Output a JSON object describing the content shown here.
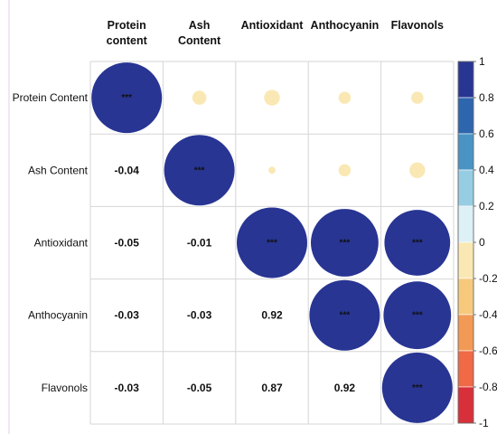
{
  "chart_data": {
    "type": "heatmap",
    "variables": [
      "Protein Content",
      "Ash Content",
      "Antioxidant",
      "Anthocyanin",
      "Flavonols"
    ],
    "column_labels": [
      [
        "Protein",
        "content"
      ],
      [
        "Ash",
        "Content"
      ],
      [
        "Antioxidant"
      ],
      [
        "Anthocyanin"
      ],
      [
        "Flavonols"
      ]
    ],
    "row_labels": [
      "Protein Content",
      "Ash Content",
      "Antioxidant",
      "Anthocyanin",
      "Flavonols"
    ],
    "correlation_matrix": [
      [
        1,
        -0.04,
        -0.05,
        -0.03,
        -0.03
      ],
      [
        -0.04,
        1,
        -0.01,
        -0.03,
        -0.05
      ],
      [
        -0.05,
        -0.01,
        1,
        0.92,
        0.87
      ],
      [
        -0.03,
        -0.03,
        0.92,
        1,
        0.92
      ],
      [
        -0.03,
        -0.05,
        0.87,
        0.92,
        1
      ]
    ],
    "lower_triangle_labels": [
      [
        "",
        "",
        "",
        "",
        ""
      ],
      [
        "-0.04",
        "",
        "",
        "",
        ""
      ],
      [
        "-0.05",
        "-0.01",
        "",
        "",
        ""
      ],
      [
        "-0.03",
        "-0.03",
        "0.92",
        "",
        ""
      ],
      [
        "-0.03",
        "-0.05",
        "0.87",
        "0.92",
        ""
      ]
    ],
    "significance_marker": "***",
    "upper_triangle_style": "circles",
    "colorbar": {
      "ticks": [
        1,
        0.8,
        0.6,
        0.4,
        0.2,
        0,
        -0.2,
        -0.4,
        -0.6,
        -0.8,
        -1
      ],
      "tick_labels": [
        "1",
        "0.8",
        "0.6",
        "0.4",
        "0.2",
        "0",
        "-0.2",
        "-0.4",
        "-0.6",
        "-0.8",
        "-1"
      ],
      "range": [
        -1,
        1
      ],
      "bins": [
        {
          "from": 0.8,
          "to": 1.0,
          "color": "#283593"
        },
        {
          "from": 0.6,
          "to": 0.8,
          "color": "#2d66ad"
        },
        {
          "from": 0.4,
          "to": 0.6,
          "color": "#4994c4"
        },
        {
          "from": 0.2,
          "to": 0.4,
          "color": "#97cde2"
        },
        {
          "from": 0.0,
          "to": 0.2,
          "color": "#ddf0f5"
        },
        {
          "from": -0.2,
          "to": 0.0,
          "color": "#fae8b4"
        },
        {
          "from": -0.4,
          "to": -0.2,
          "color": "#f6c97d"
        },
        {
          "from": -0.6,
          "to": -0.4,
          "color": "#f29a55"
        },
        {
          "from": -0.8,
          "to": -0.6,
          "color": "#ef6a45"
        },
        {
          "from": -1.0,
          "to": -0.8,
          "color": "#d7303a"
        }
      ]
    },
    "colors": {
      "strong_positive": "#283593",
      "weak_negative": "#fae8b4",
      "grid": "#d6d6d6"
    }
  }
}
